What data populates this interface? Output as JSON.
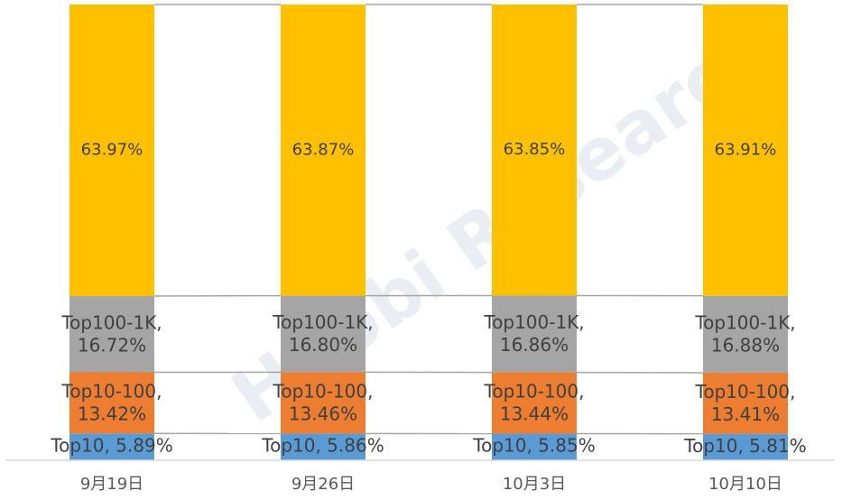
{
  "chart_data": {
    "type": "stacked_bar",
    "categories": [
      "9月19日",
      "9月26日",
      "10月3日",
      "10月10日"
    ],
    "ylim": [
      0,
      100
    ],
    "series": [
      {
        "name": "Top10",
        "color": "#5b9bd5",
        "values": [
          5.89,
          5.86,
          5.85,
          5.81
        ],
        "value_labels": [
          "Top10, 5.89%",
          "Top10, 5.86%",
          "Top10, 5.85%",
          "Top10, 5.81%"
        ]
      },
      {
        "name": "Top10-100",
        "color": "#ed7d31",
        "values": [
          13.42,
          13.46,
          13.44,
          13.41
        ],
        "value_labels": [
          "Top10-100, 13.42%",
          "Top10-100, 13.46%",
          "Top10-100, 13.44%",
          "Top10-100, 13.41%"
        ]
      },
      {
        "name": "Top100-1K",
        "color": "#a5a5a5",
        "values": [
          16.72,
          16.8,
          16.86,
          16.88
        ],
        "value_labels": [
          "Top100-1K, 16.72%",
          "Top100-1K, 16.80%",
          "Top100-1K, 16.86%",
          "Top100-1K, 16.88%"
        ]
      },
      {
        "color": "#ffc000",
        "values": [
          63.97,
          63.87,
          63.85,
          63.91
        ],
        "value_labels": [
          "63.97%",
          "63.87%",
          "63.85%",
          "63.91%"
        ]
      }
    ],
    "watermark": "Huobi Research"
  }
}
